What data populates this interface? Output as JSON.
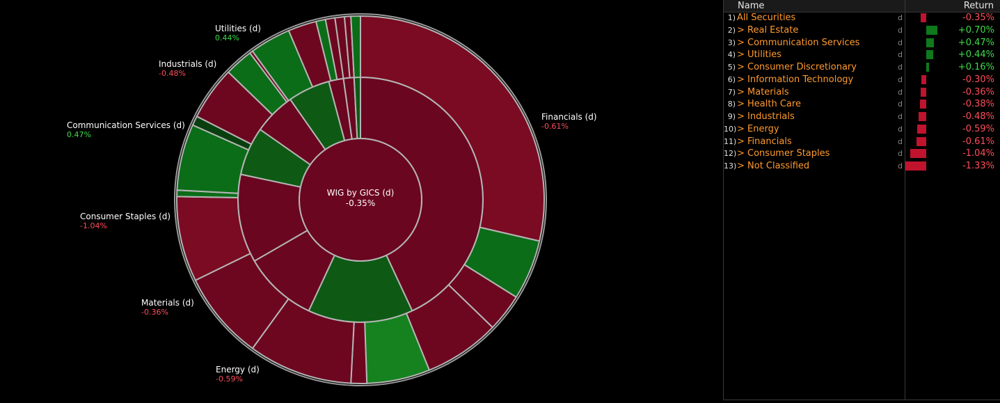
{
  "chart_data": {
    "type": "sunburst",
    "title": "WIG by GICS (d)",
    "center_value": "-0.35%",
    "sectors": [
      {
        "name": "Financials (d)",
        "value": "-0.61%"
      },
      {
        "name": "Energy (d)",
        "value": "-0.59%"
      },
      {
        "name": "Materials (d)",
        "value": "-0.36%"
      },
      {
        "name": "Consumer Staples (d)",
        "value": "-1.04%"
      },
      {
        "name": "Communication Services (d)",
        "value": "0.47%"
      },
      {
        "name": "Industrials (d)",
        "value": "-0.48%"
      },
      {
        "name": "Utilities (d)",
        "value": "0.44%"
      }
    ]
  },
  "table": {
    "header": {
      "name": "Name",
      "return": "Return"
    },
    "rows": [
      {
        "num": "1)",
        "name": "All Securities",
        "d": "d",
        "ret": "-0.35%",
        "value": -0.35
      },
      {
        "num": "2)",
        "name": "> Real Estate",
        "d": "d",
        "ret": "+0.70%",
        "value": 0.7
      },
      {
        "num": "3)",
        "name": "> Communication Services",
        "d": "d",
        "ret": "+0.47%",
        "value": 0.47
      },
      {
        "num": "4)",
        "name": "> Utilities",
        "d": "d",
        "ret": "+0.44%",
        "value": 0.44
      },
      {
        "num": "5)",
        "name": "> Consumer Discretionary",
        "d": "d",
        "ret": "+0.16%",
        "value": 0.16
      },
      {
        "num": "6)",
        "name": "> Information Technology",
        "d": "d",
        "ret": "-0.30%",
        "value": -0.3
      },
      {
        "num": "7)",
        "name": "> Materials",
        "d": "d",
        "ret": "-0.36%",
        "value": -0.36
      },
      {
        "num": "8)",
        "name": "> Health Care",
        "d": "d",
        "ret": "-0.38%",
        "value": -0.38
      },
      {
        "num": "9)",
        "name": "> Industrials",
        "d": "d",
        "ret": "-0.48%",
        "value": -0.48
      },
      {
        "num": "10)",
        "name": "> Energy",
        "d": "d",
        "ret": "-0.59%",
        "value": -0.59
      },
      {
        "num": "11)",
        "name": "> Financials",
        "d": "d",
        "ret": "-0.61%",
        "value": -0.61
      },
      {
        "num": "12)",
        "name": "> Consumer Staples",
        "d": "d",
        "ret": "-1.04%",
        "value": -1.04
      },
      {
        "num": "13)",
        "name": "> Not Classified",
        "d": "d",
        "ret": "-1.33%",
        "value": -1.33
      }
    ]
  },
  "colors": {
    "negative": "#c0132e",
    "positive": "#0e7a1c",
    "neg_text": "#ff4d5a",
    "pos_text": "#3fdc4a",
    "name_text": "#ff9a2e"
  }
}
